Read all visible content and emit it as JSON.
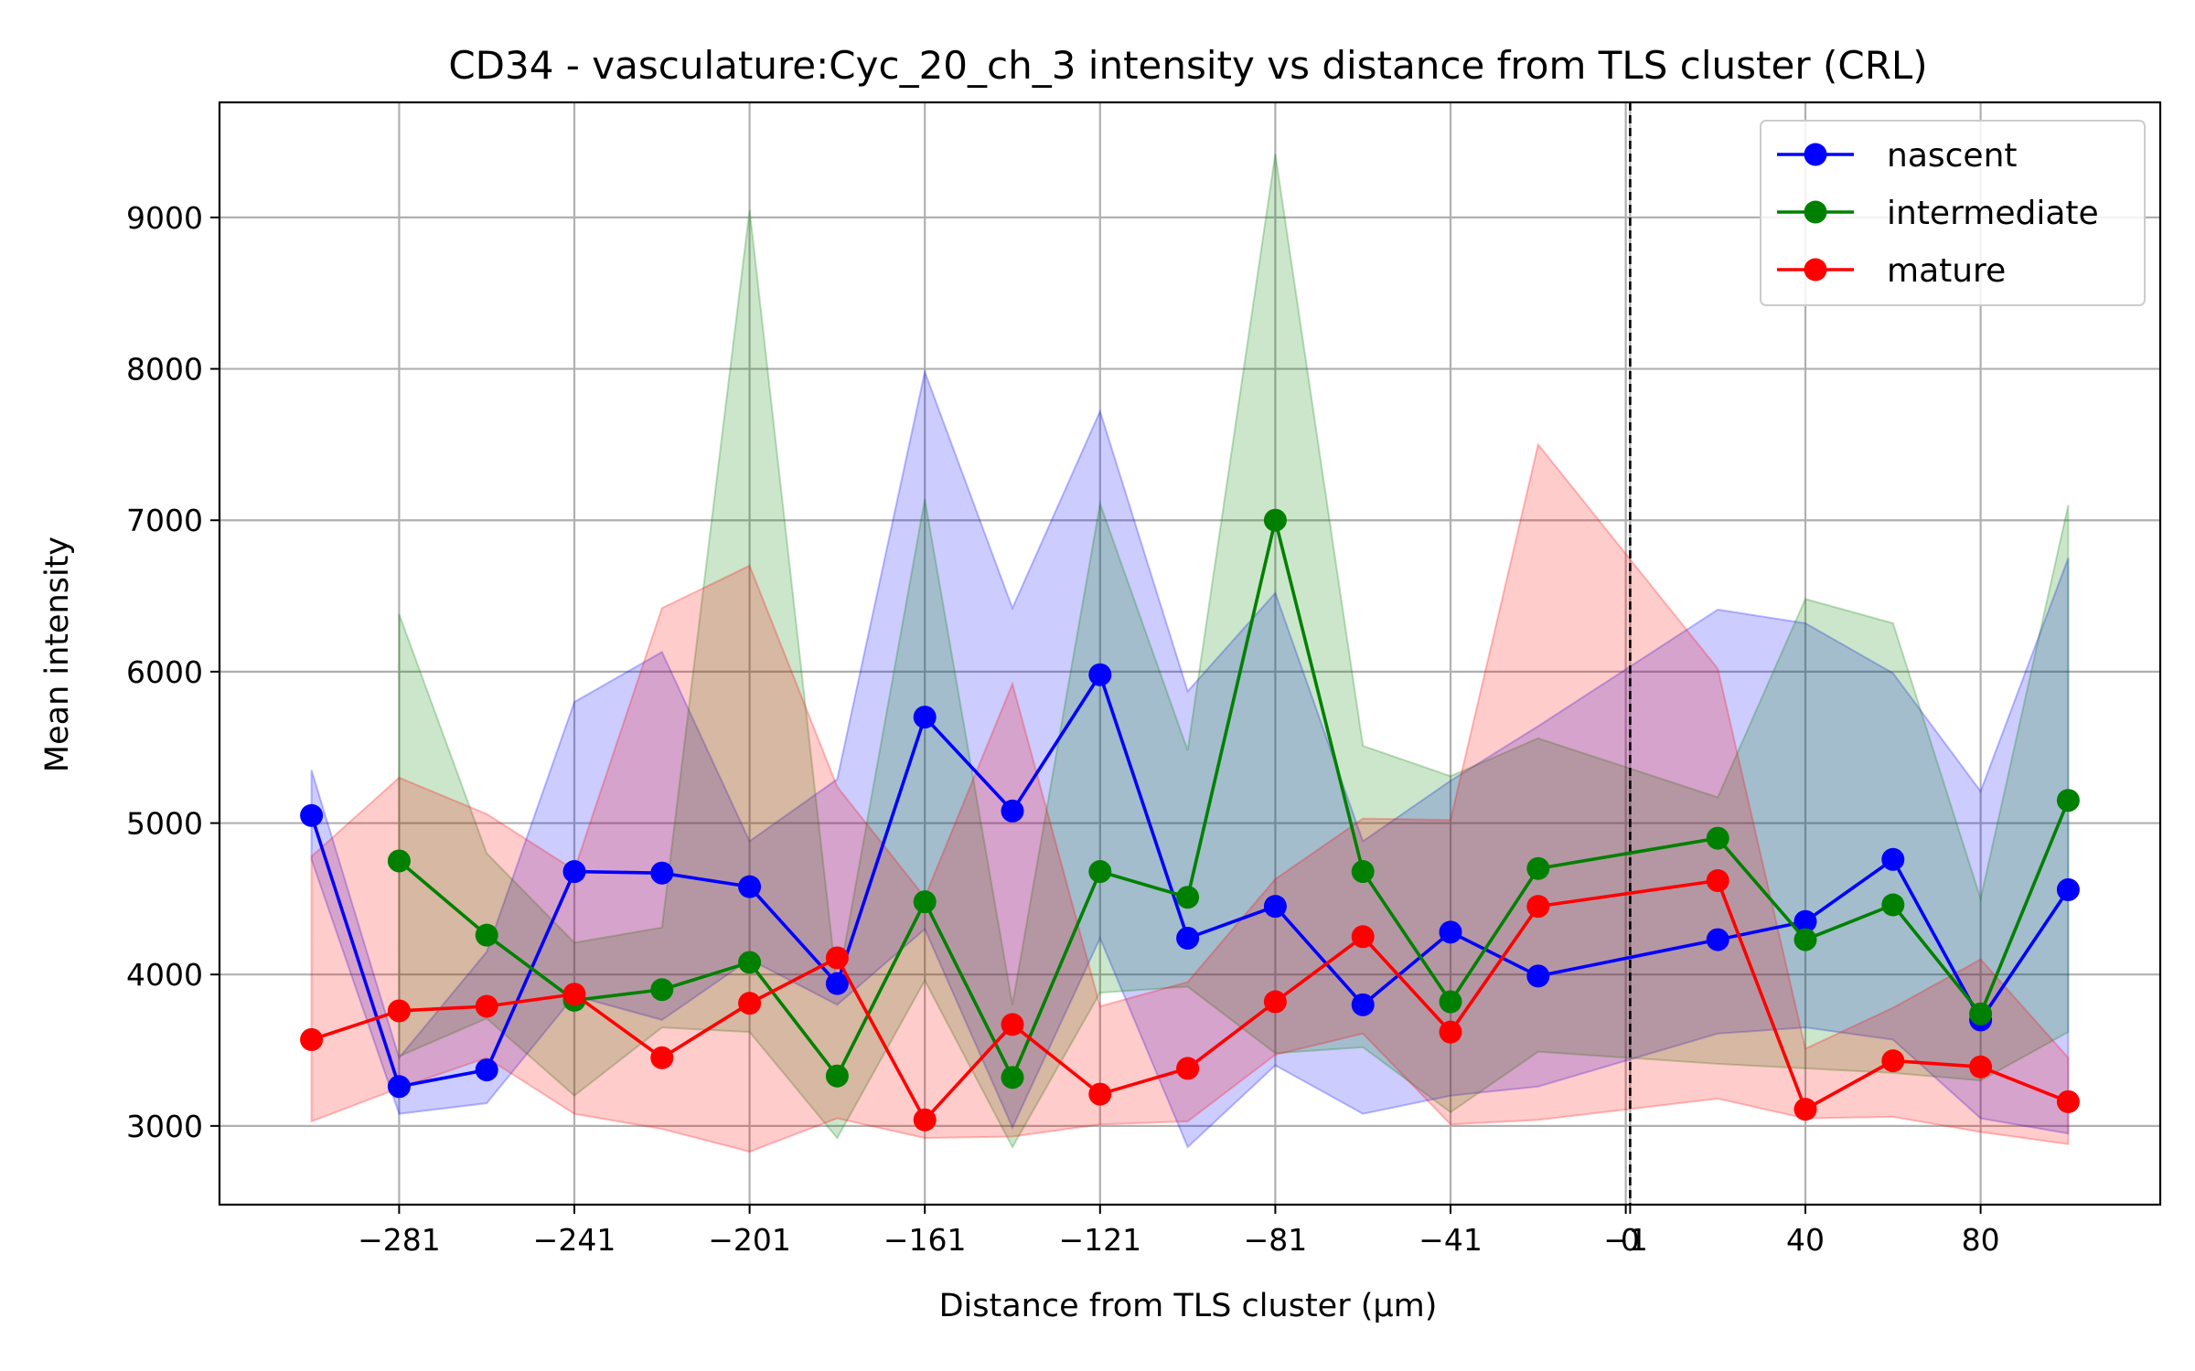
{
  "chart_data": {
    "type": "line",
    "title": "CD34 - vasculature:Cyc_20_ch_3 intensity vs distance from TLS cluster (CRL)",
    "xlabel": "Distance from TLS cluster (μm)",
    "ylabel": "Mean intensity",
    "xlim": [
      -322,
      121
    ],
    "ylim": [
      2480,
      9760
    ],
    "grid": true,
    "legend_position": "top-right",
    "xticks": [
      {
        "value": -281,
        "label": "−281"
      },
      {
        "value": -241,
        "label": "−241"
      },
      {
        "value": -201,
        "label": "−201"
      },
      {
        "value": -161,
        "label": "−161"
      },
      {
        "value": -121,
        "label": "−121"
      },
      {
        "value": -81,
        "label": "−81"
      },
      {
        "value": -41,
        "label": "−41"
      },
      {
        "value": -1,
        "label": "−1"
      },
      {
        "value": 0,
        "label": "0"
      },
      {
        "value": 40,
        "label": "40"
      },
      {
        "value": 80,
        "label": "80"
      }
    ],
    "yticks": [
      {
        "value": 3000,
        "label": "3000"
      },
      {
        "value": 4000,
        "label": "4000"
      },
      {
        "value": 5000,
        "label": "5000"
      },
      {
        "value": 6000,
        "label": "6000"
      },
      {
        "value": 7000,
        "label": "7000"
      },
      {
        "value": 8000,
        "label": "8000"
      },
      {
        "value": 9000,
        "label": "9000"
      }
    ],
    "vline": {
      "x": 0,
      "style": "dashed",
      "color": "#000000"
    },
    "series": [
      {
        "name": "nascent",
        "color": "#0000ff",
        "x": [
          -301,
          -281,
          -261,
          -241,
          -221,
          -201,
          -181,
          -161,
          -141,
          -121,
          -101,
          -81,
          -61,
          -41,
          -21,
          20,
          40,
          60,
          80,
          100
        ],
        "y": [
          5050,
          3260,
          3370,
          4680,
          4670,
          4580,
          3940,
          5700,
          5080,
          5980,
          4240,
          4450,
          3800,
          4280,
          3990,
          4230,
          4350,
          4760,
          3700,
          4560
        ],
        "upper": [
          5350,
          3450,
          4150,
          5800,
          6130,
          4880,
          5290,
          7980,
          6420,
          7720,
          5870,
          6520,
          4880,
          5280,
          5640,
          6410,
          6320,
          5990,
          5210,
          6750
        ],
        "lower": [
          4760,
          3080,
          3150,
          3860,
          3700,
          4100,
          3800,
          4300,
          2990,
          4240,
          2860,
          3400,
          3080,
          3200,
          3260,
          3610,
          3650,
          3570,
          3050,
          2950
        ]
      },
      {
        "name": "intermediate",
        "color": "#008000",
        "x": [
          -281,
          -261,
          -241,
          -221,
          -201,
          -181,
          -161,
          -141,
          -121,
          -101,
          -81,
          -61,
          -41,
          -21,
          20,
          40,
          60,
          80,
          100
        ],
        "y": [
          4750,
          4260,
          3830,
          3900,
          4080,
          3330,
          4480,
          3320,
          4680,
          4510,
          7000,
          4680,
          3820,
          4700,
          4900,
          4230,
          4460,
          3740,
          5150
        ],
        "upper": [
          6380,
          4800,
          4210,
          4310,
          9050,
          3910,
          7140,
          3800,
          7110,
          5480,
          9420,
          5510,
          5310,
          5560,
          5170,
          6480,
          6320,
          4500,
          7100
        ],
        "lower": [
          3460,
          3710,
          3200,
          3650,
          3620,
          2920,
          3960,
          2860,
          3880,
          3920,
          3480,
          3520,
          3090,
          3490,
          3410,
          3380,
          3350,
          3300,
          3620
        ]
      },
      {
        "name": "mature",
        "color": "#ff0000",
        "x": [
          -301,
          -281,
          -261,
          -241,
          -221,
          -201,
          -181,
          -161,
          -141,
          -121,
          -101,
          -81,
          -61,
          -41,
          -21,
          20,
          40,
          60,
          80,
          100
        ],
        "y": [
          3570,
          3760,
          3790,
          3870,
          3450,
          3810,
          4110,
          3040,
          3670,
          3210,
          3380,
          3820,
          4250,
          3620,
          4450,
          4620,
          3110,
          3430,
          3390,
          3160
        ],
        "upper": [
          4780,
          5300,
          5060,
          4690,
          6420,
          6700,
          5240,
          4510,
          5920,
          3790,
          3950,
          4630,
          5030,
          5020,
          7500,
          6020,
          3510,
          3780,
          4100,
          3450
        ],
        "lower": [
          3030,
          3250,
          3450,
          3080,
          2980,
          2830,
          3050,
          2920,
          2930,
          3010,
          3030,
          3470,
          3610,
          3010,
          3040,
          3180,
          3050,
          3060,
          2960,
          2880
        ]
      }
    ]
  }
}
